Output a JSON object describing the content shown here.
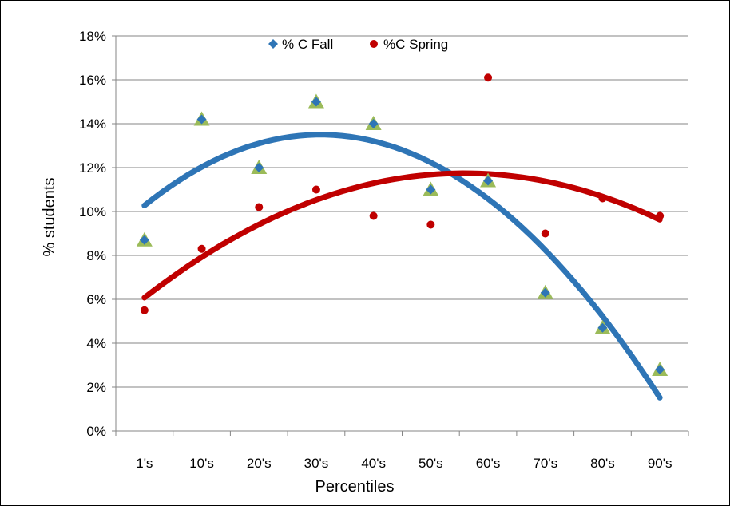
{
  "chart_data": {
    "type": "scatter",
    "title": "",
    "xlabel": "Percentiles",
    "ylabel": "% students",
    "categories": [
      "1's",
      "10's",
      "20's",
      "30's",
      "40's",
      "50's",
      "60's",
      "70's",
      "80's",
      "90's"
    ],
    "y_ticks": [
      "0%",
      "2%",
      "4%",
      "6%",
      "8%",
      "10%",
      "12%",
      "14%",
      "16%",
      "18%"
    ],
    "ylim": [
      0,
      18
    ],
    "grid": true,
    "legend_position": "top-center",
    "series": [
      {
        "name": "% C Fall",
        "marker": "diamond",
        "color": "#2E75B6",
        "values": [
          8.7,
          14.2,
          12.0,
          15.0,
          14.0,
          11.0,
          11.4,
          6.3,
          4.7,
          2.8
        ]
      },
      {
        "name": "%C Spring",
        "marker": "circle",
        "color": "#C00000",
        "values": [
          5.5,
          8.3,
          10.2,
          11.0,
          9.8,
          9.4,
          16.1,
          9.0,
          10.6,
          9.8
        ]
      }
    ],
    "extra_markers": {
      "marker": "triangle",
      "color": "#9BBB59",
      "values": [
        8.7,
        14.2,
        12.0,
        15.0,
        14.0,
        11.0,
        11.4,
        6.3,
        4.7,
        2.8
      ]
    },
    "trendlines": [
      {
        "series": "% C Fall",
        "kind": "polynomial",
        "color": "#2E75B6",
        "values": [
          10.3,
          12.0,
          13.1,
          13.5,
          13.2,
          12.2,
          10.6,
          8.3,
          5.2,
          1.5
        ]
      },
      {
        "series": "%C Spring",
        "kind": "polynomial",
        "color": "#C00000",
        "values": [
          6.1,
          7.9,
          9.4,
          10.5,
          11.3,
          11.7,
          11.7,
          11.4,
          10.7,
          9.6
        ]
      }
    ]
  }
}
